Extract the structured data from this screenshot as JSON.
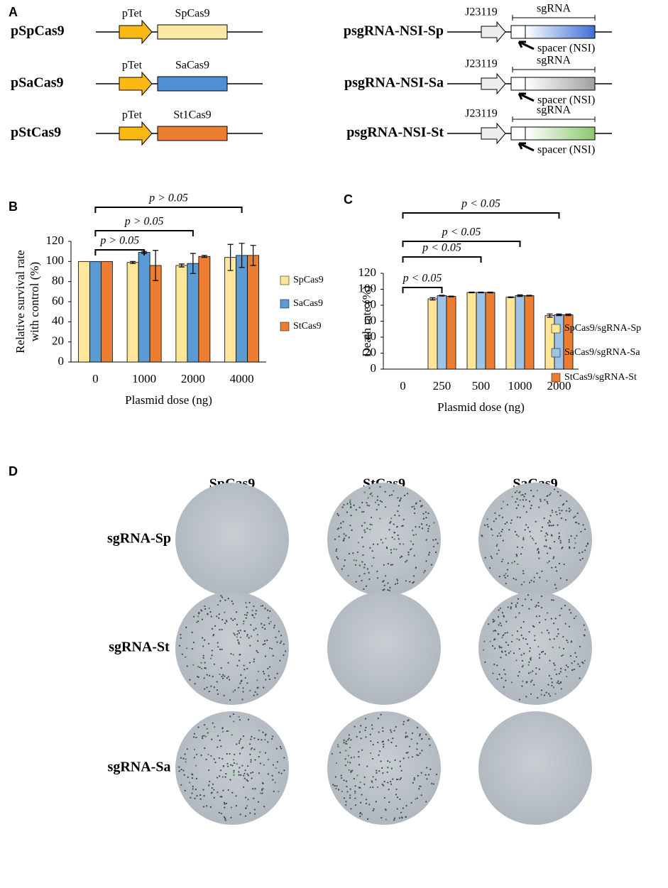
{
  "panel_a": {
    "label": "A",
    "constructs": [
      {
        "name": "pSpCas9",
        "promoter": "pTet",
        "gene": "SpCas9",
        "color": "#fde9a6"
      },
      {
        "name": "pSaCas9",
        "promoter": "pTet",
        "gene": "SaCas9",
        "color": "#4f8fd6"
      },
      {
        "name": "pStCas9",
        "promoter": "pTet",
        "gene": "St1Cas9",
        "color": "#ed7d31"
      }
    ],
    "sgrna_constructs": [
      {
        "name": "psgRNA-NSI-Sp",
        "promoter": "J23119",
        "region": "sgRNA",
        "spacer": "spacer (NSI)",
        "color": "#3d6ed6"
      },
      {
        "name": "psgRNA-NSI-Sa",
        "promoter": "J23119",
        "region": "sgRNA",
        "spacer": "spacer (NSI)",
        "color": "#a0a0a0"
      },
      {
        "name": "psgRNA-NSI-St",
        "promoter": "J23119",
        "region": "sgRNA",
        "spacer": "spacer (NSI)",
        "color": "#8cc870"
      }
    ]
  },
  "chart_data": [
    {
      "type": "bar",
      "panel": "B",
      "ylabel": [
        "Relative survival rate",
        "with control (%)"
      ],
      "xlabel": "Plasmid dose (ng)",
      "categories": [
        "0",
        "1000",
        "2000",
        "4000"
      ],
      "series": [
        {
          "name": "SpCas9",
          "color": "#ffe699",
          "values": [
            100,
            99,
            96,
            104
          ],
          "errors": [
            0,
            1,
            1.5,
            13
          ]
        },
        {
          "name": "SaCas9",
          "color": "#5b9bd5",
          "values": [
            100,
            109,
            98,
            106
          ],
          "errors": [
            0,
            1,
            10,
            12
          ]
        },
        {
          "name": "StCas9",
          "color": "#ed7d31",
          "values": [
            100,
            96,
            105,
            106
          ],
          "errors": [
            0,
            15,
            1,
            10
          ]
        }
      ],
      "ylim": [
        0,
        120
      ],
      "yticks": [
        0,
        20,
        40,
        60,
        80,
        100,
        120
      ],
      "annotations": [
        "p > 0.05",
        "p > 0.05",
        "p > 0.05"
      ]
    },
    {
      "type": "bar",
      "panel": "C",
      "ylabel": [
        "Death rate (%)"
      ],
      "xlabel": "Plasmid dose (ng)",
      "categories": [
        "0",
        "250",
        "500",
        "1000",
        "2000"
      ],
      "series": [
        {
          "name": "SpCas9/sgRNA-Sp",
          "color": "#ffe699",
          "values": [
            0,
            88,
            96,
            90,
            67
          ],
          "errors": [
            0,
            1.5,
            0.5,
            0.5,
            2
          ]
        },
        {
          "name": "SaCas9/sgRNA-Sa",
          "color": "#9dc3e6",
          "values": [
            0,
            92,
            96,
            92,
            68
          ],
          "errors": [
            0,
            0.5,
            0.5,
            1,
            1
          ]
        },
        {
          "name": "StCas9/sgRNA-St",
          "color": "#ed7d31",
          "values": [
            0,
            91,
            96,
            92,
            68
          ],
          "errors": [
            0,
            0.5,
            0.5,
            0.5,
            1
          ]
        }
      ],
      "ylim": [
        0,
        120
      ],
      "yticks": [
        0,
        20,
        40,
        60,
        80,
        100,
        120
      ],
      "annotations": [
        "p < 0.05",
        "p < 0.05",
        "p < 0.05",
        "p < 0.05"
      ]
    }
  ],
  "panel_d": {
    "label": "D",
    "columns": [
      "SpCas9",
      "StCas9",
      "SaCas9"
    ],
    "rows": [
      "sgRNA-Sp",
      "sgRNA-St",
      "sgRNA-Sa"
    ]
  }
}
